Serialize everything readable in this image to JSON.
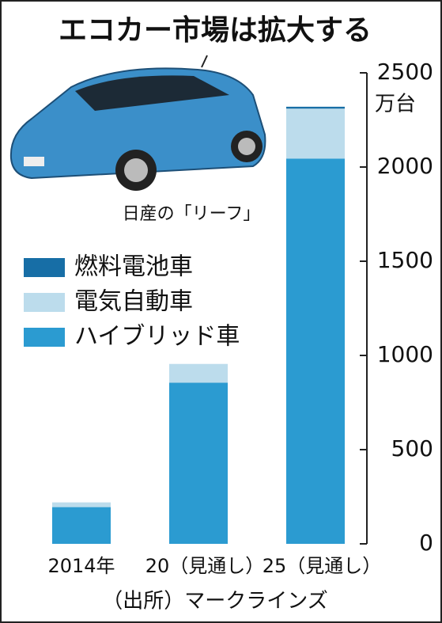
{
  "chart_data": {
    "type": "stacked-bar",
    "title": "エコカー市場は拡大する",
    "unit": "万台",
    "image_caption": "日産の「リーフ」",
    "source": "（出所）マークラインズ",
    "categories": [
      "2014年",
      "20（見通し）",
      "25（見通し）"
    ],
    "series": [
      {
        "name": "ハイブリッド車",
        "color": "#2b9bd1",
        "values": [
          195,
          855,
          2045
        ]
      },
      {
        "name": "電気自動車",
        "color": "#bcdcec",
        "values": [
          25,
          100,
          265
        ]
      },
      {
        "name": "燃料電池車",
        "color": "#176ea6",
        "values": [
          0,
          0,
          10
        ]
      }
    ],
    "ylim": [
      0,
      2500
    ],
    "yticks": [
      0,
      500,
      1000,
      1500,
      2000,
      2500
    ]
  }
}
